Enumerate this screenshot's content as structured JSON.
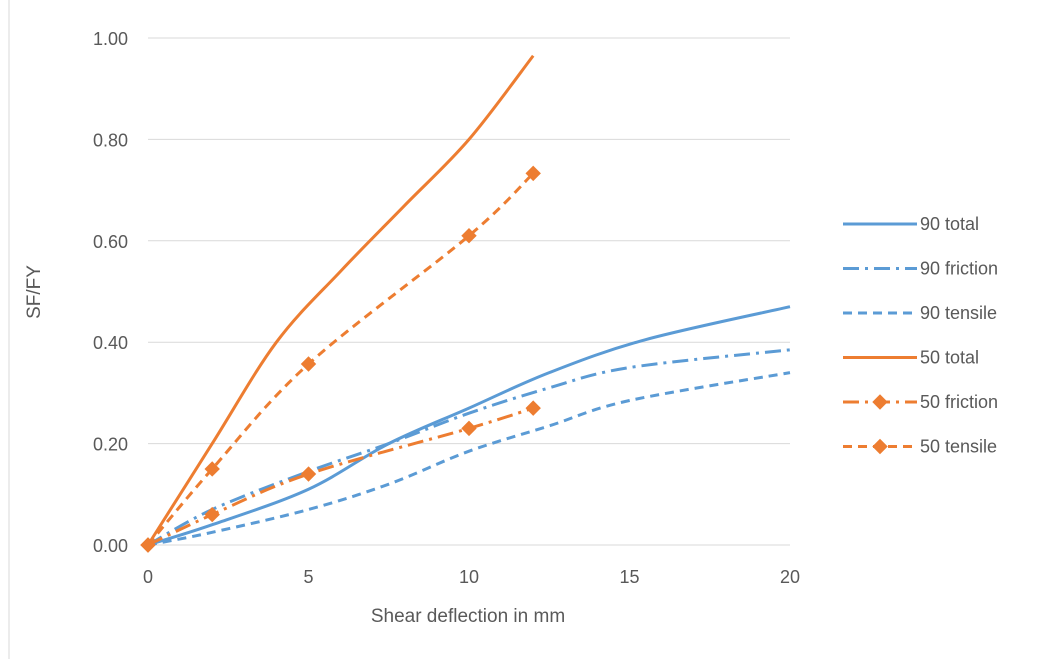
{
  "chart_data": {
    "type": "line",
    "title": "",
    "xlabel": "Shear deflection in mm",
    "ylabel": "SF/FY",
    "xlim": [
      0,
      20
    ],
    "ylim": [
      0,
      1.0
    ],
    "x_ticks": [
      0,
      5,
      10,
      15,
      20
    ],
    "x_tick_labels": [
      "0",
      "5",
      "10",
      "15",
      "20"
    ],
    "y_ticks": [
      0,
      0.2,
      0.4,
      0.6,
      0.8,
      1.0
    ],
    "y_tick_labels": [
      "0.00",
      "0.20",
      "0.40",
      "0.60",
      "0.80",
      "1.00"
    ],
    "grid": "horizontal",
    "legend_position": "right",
    "series": [
      {
        "name": "90 total",
        "color": "#5B9BD5",
        "dash": "solid",
        "marker": "none",
        "points": [
          [
            0,
            0
          ],
          [
            2,
            0.04
          ],
          [
            5,
            0.11
          ],
          [
            7.5,
            0.2
          ],
          [
            10,
            0.27
          ],
          [
            12.5,
            0.34
          ],
          [
            15.5,
            0.405
          ],
          [
            20,
            0.47
          ]
        ]
      },
      {
        "name": "90 friction",
        "color": "#5B9BD5",
        "dash": "dashdot",
        "marker": "none",
        "points": [
          [
            0,
            0
          ],
          [
            2,
            0.07
          ],
          [
            5,
            0.145
          ],
          [
            7.5,
            0.2
          ],
          [
            10,
            0.26
          ],
          [
            12.5,
            0.31
          ],
          [
            15,
            0.35
          ],
          [
            20,
            0.385
          ]
        ]
      },
      {
        "name": "90 tensile",
        "color": "#5B9BD5",
        "dash": "dash",
        "marker": "none",
        "points": [
          [
            0,
            0
          ],
          [
            2,
            0.025
          ],
          [
            5,
            0.07
          ],
          [
            7.5,
            0.12
          ],
          [
            10,
            0.185
          ],
          [
            12.5,
            0.235
          ],
          [
            15,
            0.285
          ],
          [
            20,
            0.34
          ]
        ]
      },
      {
        "name": "50 total",
        "color": "#ED7D31",
        "dash": "solid",
        "marker": "none",
        "points": [
          [
            0,
            0
          ],
          [
            2,
            0.2
          ],
          [
            4,
            0.4
          ],
          [
            6,
            0.54
          ],
          [
            8,
            0.67
          ],
          [
            10,
            0.8
          ],
          [
            12,
            0.965
          ]
        ]
      },
      {
        "name": "50 friction",
        "color": "#ED7D31",
        "dash": "dashdot",
        "marker": "diamond",
        "points": [
          [
            0,
            0
          ],
          [
            2,
            0.06
          ],
          [
            5,
            0.14
          ],
          [
            10,
            0.23
          ],
          [
            12,
            0.27
          ]
        ]
      },
      {
        "name": "50 tensile",
        "color": "#ED7D31",
        "dash": "dash",
        "marker": "diamond",
        "points": [
          [
            0,
            0
          ],
          [
            2,
            0.15
          ],
          [
            5,
            0.357
          ],
          [
            10,
            0.61
          ],
          [
            12,
            0.733
          ]
        ]
      }
    ]
  }
}
